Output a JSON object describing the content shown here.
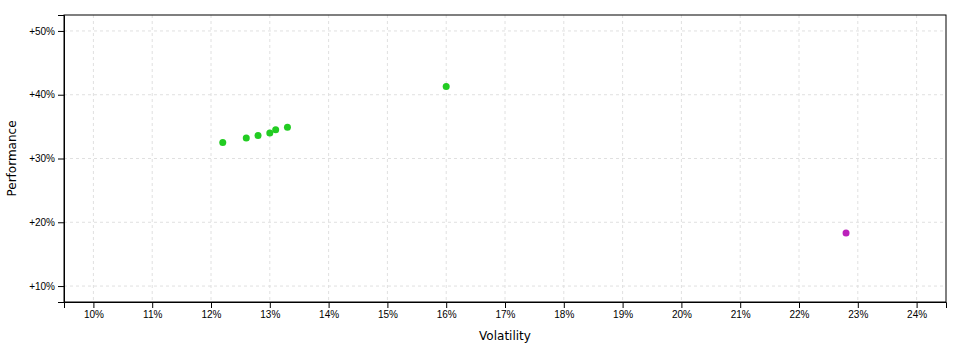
{
  "chart_data": {
    "type": "scatter",
    "xlabel": "Volatility",
    "ylabel": "Performance",
    "xlim": [
      0.095,
      0.245
    ],
    "ylim": [
      0.075,
      0.525
    ],
    "xticks": [
      {
        "value": 0.1,
        "label": "10%"
      },
      {
        "value": 0.11,
        "label": "11%"
      },
      {
        "value": 0.12,
        "label": "12%"
      },
      {
        "value": 0.13,
        "label": "13%"
      },
      {
        "value": 0.14,
        "label": "14%"
      },
      {
        "value": 0.15,
        "label": "15%"
      },
      {
        "value": 0.16,
        "label": "16%"
      },
      {
        "value": 0.17,
        "label": "17%"
      },
      {
        "value": 0.18,
        "label": "18%"
      },
      {
        "value": 0.19,
        "label": "19%"
      },
      {
        "value": 0.2,
        "label": "20%"
      },
      {
        "value": 0.21,
        "label": "21%"
      },
      {
        "value": 0.22,
        "label": "22%"
      },
      {
        "value": 0.23,
        "label": "23%"
      },
      {
        "value": 0.24,
        "label": "24%"
      }
    ],
    "yticks": [
      {
        "value": 0.1,
        "label": "+10%"
      },
      {
        "value": 0.2,
        "label": "+20%"
      },
      {
        "value": 0.3,
        "label": "+30%"
      },
      {
        "value": 0.4,
        "label": "+40%"
      },
      {
        "value": 0.5,
        "label": "+50%"
      }
    ],
    "grid": true,
    "series": [
      {
        "color": "#22cc22",
        "x": [
          0.122,
          0.126,
          0.128,
          0.13,
          0.131,
          0.133,
          0.16
        ],
        "values": [
          0.325,
          0.332,
          0.336,
          0.34,
          0.345,
          0.349,
          0.413
        ]
      },
      {
        "color": "#bb22bb",
        "x": [
          0.228
        ],
        "values": [
          0.183
        ]
      }
    ]
  }
}
